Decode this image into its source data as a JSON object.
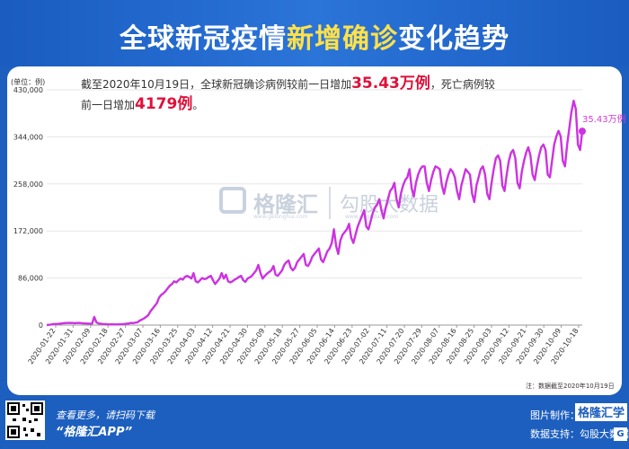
{
  "header": {
    "title_part1": "全球新冠疫情",
    "title_highlight": "新增确诊",
    "title_part2": "变化趋势"
  },
  "annotation": {
    "line1_prefix": "截至2020年10月19日，全球新冠确诊病例较前一日增加",
    "line1_value": "35.43万例",
    "line1_suffix": "，死亡病例较",
    "line2_prefix": "前一日增加",
    "line2_value": "4179例",
    "line2_suffix": "。"
  },
  "unit_label": "(单位：例)",
  "end_label": "35.43万例",
  "note": "注：数据截至2020年10月19日",
  "watermark": {
    "brand": "格隆汇",
    "brand_url": "www.gelonghui.com",
    "brand2": "勾股大数据",
    "brand2_url": "www.gogudata.com"
  },
  "footer": {
    "left1": "查看更多，请扫码下载",
    "left2": "“格隆汇APP”",
    "right1": "图片制作：",
    "brand": "格隆汇学",
    "right2": "数据支持：勾股大数据 Wi"
  },
  "colors": {
    "line": "#cc33e0",
    "accent": "#e0103a",
    "header_bg": "#1d5fbf",
    "highlight": "#ffe14a"
  },
  "chart_data": {
    "type": "line",
    "title": "全球新冠疫情新增确诊变化趋势",
    "ylabel": "(单位：例)",
    "ylim": [
      0,
      430000
    ],
    "yticks": [
      0,
      86000,
      172000,
      258000,
      344000,
      430000
    ],
    "ytick_labels": [
      "0",
      "86,000",
      "172,000",
      "258,000",
      "344,000",
      "430,000"
    ],
    "xtick_labels": [
      "2020-01-22",
      "2020-01-31",
      "2020-02-09",
      "2020-02-18",
      "2020-02-27",
      "2020-03-07",
      "2020-03-16",
      "2020-03-25",
      "2020-04-03",
      "2020-04-12",
      "2020-04-21",
      "2020-04-30",
      "2020-05-09",
      "2020-05-18",
      "2020-05-27",
      "2020-06-05",
      "2020-06-14",
      "2020-06-23",
      "2020-07-02",
      "2020-07-11",
      "2020-07-20",
      "2020-07-29",
      "2020-08-07",
      "2020-08-16",
      "2020-08-25",
      "2020-09-03",
      "2020-09-12",
      "2020-09-21",
      "2020-09-30",
      "2020-10-09",
      "2020-10-18"
    ],
    "series": [
      {
        "values": [
          0,
          500,
          1000,
          2000,
          2000,
          2100,
          2500,
          3000,
          3500,
          3800,
          3900,
          4000,
          3800,
          3500,
          3800,
          4000,
          3500,
          3200,
          3000,
          2800,
          2600,
          2500,
          15000,
          5000,
          3000,
          2500,
          2000,
          1800,
          1500,
          1200,
          1500,
          1300,
          1200,
          1400,
          1600,
          1500,
          2000,
          2500,
          3000,
          4000,
          3500,
          4500,
          5000,
          8000,
          10000,
          12000,
          15000,
          18000,
          25000,
          30000,
          35000,
          40000,
          50000,
          55000,
          58000,
          62000,
          67000,
          72000,
          75000,
          80000,
          78000,
          82000,
          85000,
          83000,
          88000,
          90000,
          88000,
          85000,
          95000,
          80000,
          78000,
          82000,
          86000,
          84000,
          85000,
          88000,
          90000,
          82000,
          75000,
          80000,
          85000,
          95000,
          85000,
          92000,
          80000,
          78000,
          80000,
          83000,
          85000,
          88000,
          90000,
          82000,
          79000,
          85000,
          87000,
          90000,
          95000,
          100000,
          110000,
          95000,
          85000,
          90000,
          94000,
          97000,
          100000,
          108000,
          92000,
          90000,
          95000,
          100000,
          110000,
          115000,
          118000,
          105000,
          100000,
          105000,
          115000,
          120000,
          125000,
          130000,
          110000,
          108000,
          115000,
          125000,
          130000,
          135000,
          140000,
          120000,
          115000,
          125000,
          135000,
          140000,
          150000,
          175000,
          145000,
          130000,
          155000,
          165000,
          170000,
          175000,
          185000,
          160000,
          150000,
          165000,
          180000,
          190000,
          200000,
          210000,
          180000,
          175000,
          190000,
          205000,
          215000,
          220000,
          230000,
          210000,
          195000,
          215000,
          230000,
          245000,
          250000,
          260000,
          230000,
          215000,
          240000,
          255000,
          265000,
          270000,
          285000,
          250000,
          235000,
          260000,
          275000,
          285000,
          290000,
          290000,
          260000,
          245000,
          265000,
          280000,
          290000,
          288000,
          285000,
          255000,
          240000,
          260000,
          275000,
          285000,
          280000,
          270000,
          245000,
          230000,
          255000,
          270000,
          285000,
          280000,
          275000,
          240000,
          225000,
          255000,
          270000,
          285000,
          290000,
          275000,
          240000,
          230000,
          260000,
          285000,
          305000,
          310000,
          300000,
          255000,
          245000,
          275000,
          300000,
          315000,
          320000,
          305000,
          260000,
          250000,
          280000,
          300000,
          315000,
          325000,
          310000,
          275000,
          265000,
          290000,
          310000,
          325000,
          330000,
          320000,
          275000,
          270000,
          300000,
          330000,
          345000,
          355000,
          345000,
          300000,
          290000,
          330000,
          360000,
          390000,
          410000,
          395000,
          330000,
          320000,
          354300
        ]
      }
    ]
  }
}
